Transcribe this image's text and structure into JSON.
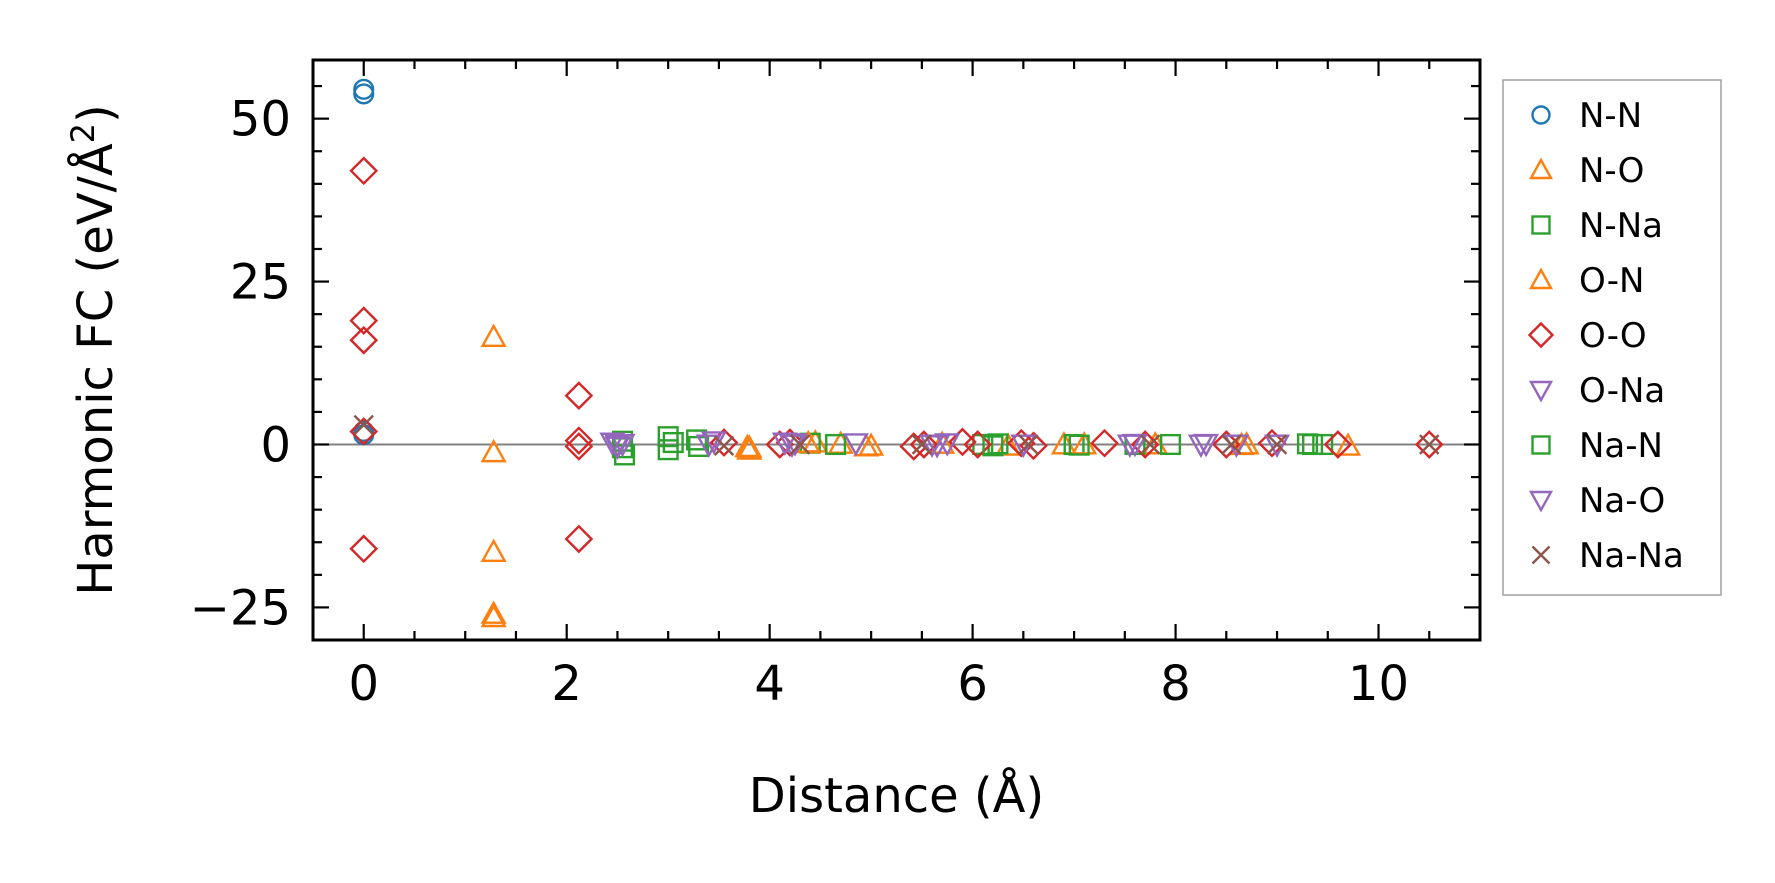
{
  "chart_data": {
    "type": "scatter",
    "xlabel": "Distance (Å)",
    "ylabel_main": "Harmonic FC (eV/Å",
    "ylabel_sup": "2",
    "ylabel_close": ")",
    "xlim": [
      -0.5,
      11.0
    ],
    "ylim": [
      -30,
      59
    ],
    "xticks": [
      0,
      2,
      4,
      6,
      8,
      10
    ],
    "xtick_labels": [
      "0",
      "2",
      "4",
      "6",
      "8",
      "10"
    ],
    "yticks": [
      -25,
      0,
      25,
      50
    ],
    "ytick_labels": [
      "−25",
      "0",
      "25",
      "50"
    ],
    "zero_line": true,
    "grid": false,
    "legend_position": "outside-right",
    "series": [
      {
        "name": "N-N",
        "marker": "circle",
        "color": "#1f77b4",
        "points": [
          [
            0,
            54.5
          ],
          [
            0,
            53.8
          ],
          [
            0,
            2.0
          ],
          [
            0,
            1.5
          ]
        ]
      },
      {
        "name": "N-O",
        "marker": "triangle-up",
        "color": "#ff7f0e",
        "points": [
          [
            1.28,
            16.5
          ],
          [
            1.28,
            -1.2
          ],
          [
            1.28,
            -16.5
          ],
          [
            1.28,
            -26.0
          ],
          [
            1.28,
            -26.5
          ],
          [
            3.78,
            -0.4
          ],
          [
            3.8,
            -0.8
          ],
          [
            4.45,
            0.3
          ],
          [
            4.7,
            0.1
          ],
          [
            4.95,
            -0.3
          ],
          [
            5.7,
            0.1
          ],
          [
            6.35,
            -0.2
          ],
          [
            6.9,
            0.0
          ],
          [
            7.8,
            0.0
          ],
          [
            8.65,
            -0.1
          ],
          [
            9.7,
            -0.2
          ]
        ]
      },
      {
        "name": "N-Na",
        "marker": "square",
        "color": "#2ca02c",
        "points": [
          [
            2.55,
            0.5
          ],
          [
            2.55,
            -0.5
          ],
          [
            2.57,
            -1.6
          ],
          [
            3.0,
            1.2
          ],
          [
            3.0,
            -0.8
          ],
          [
            3.28,
            0.7
          ],
          [
            3.3,
            -0.3
          ],
          [
            4.4,
            0.2
          ],
          [
            4.65,
            0.0
          ],
          [
            6.1,
            0.0
          ],
          [
            6.25,
            0.1
          ],
          [
            7.0,
            0.0
          ],
          [
            7.6,
            0.0
          ],
          [
            7.95,
            0.0
          ],
          [
            9.35,
            0.0
          ],
          [
            9.45,
            0.0
          ]
        ]
      },
      {
        "name": "O-N",
        "marker": "triangle-up",
        "color": "#ff7f0e",
        "points": [
          [
            3.8,
            -0.5
          ],
          [
            4.38,
            0.2
          ],
          [
            5.0,
            -0.2
          ],
          [
            7.1,
            0.0
          ],
          [
            8.7,
            0.0
          ]
        ]
      },
      {
        "name": "O-O",
        "marker": "diamond",
        "color": "#d62728",
        "points": [
          [
            0,
            42.0
          ],
          [
            0,
            19.0
          ],
          [
            0,
            16.0
          ],
          [
            0,
            2.0
          ],
          [
            0,
            -16.0
          ],
          [
            2.12,
            7.5
          ],
          [
            2.12,
            0.6
          ],
          [
            2.12,
            -0.3
          ],
          [
            2.12,
            -14.5
          ],
          [
            3.55,
            0.3
          ],
          [
            4.1,
            0.0
          ],
          [
            4.2,
            0.3
          ],
          [
            5.42,
            -0.3
          ],
          [
            5.52,
            0.0
          ],
          [
            5.9,
            0.4
          ],
          [
            6.05,
            0.0
          ],
          [
            6.48,
            0.2
          ],
          [
            6.6,
            -0.2
          ],
          [
            7.3,
            0.2
          ],
          [
            7.7,
            0.0
          ],
          [
            8.5,
            0.0
          ],
          [
            8.95,
            0.2
          ],
          [
            9.6,
            0.0
          ],
          [
            10.5,
            0.0
          ]
        ]
      },
      {
        "name": "O-Na",
        "marker": "triangle-down",
        "color": "#9467bd",
        "points": [
          [
            2.45,
            0.3
          ],
          [
            2.5,
            -0.3
          ],
          [
            2.55,
            0.1
          ],
          [
            3.4,
            0.0
          ],
          [
            3.45,
            0.5
          ],
          [
            4.15,
            0.3
          ],
          [
            4.22,
            0.0
          ],
          [
            4.85,
            0.2
          ],
          [
            5.6,
            0.0
          ],
          [
            5.75,
            0.2
          ],
          [
            6.5,
            0.0
          ],
          [
            7.55,
            0.0
          ],
          [
            8.25,
            0.0
          ],
          [
            8.6,
            0.0
          ],
          [
            9.0,
            0.0
          ]
        ]
      },
      {
        "name": "Na-N",
        "marker": "square",
        "color": "#2ca02c",
        "points": [
          [
            3.05,
            0.3
          ],
          [
            6.2,
            -0.2
          ],
          [
            7.05,
            -0.1
          ],
          [
            9.3,
            0.1
          ]
        ]
      },
      {
        "name": "Na-O",
        "marker": "triangle-down",
        "color": "#9467bd",
        "points": [
          [
            2.5,
            0.0
          ],
          [
            4.25,
            0.2
          ],
          [
            5.65,
            -0.1
          ],
          [
            7.6,
            0.1
          ],
          [
            8.3,
            0.1
          ]
        ]
      },
      {
        "name": "Na-Na",
        "marker": "x",
        "color": "#8c564b",
        "points": [
          [
            0,
            3.0
          ],
          [
            3.55,
            -0.2
          ],
          [
            4.3,
            0.0
          ],
          [
            5.5,
            0.0
          ],
          [
            6.55,
            0.0
          ],
          [
            7.75,
            0.0
          ],
          [
            8.55,
            0.0
          ],
          [
            9.0,
            0.0
          ],
          [
            10.5,
            0.0
          ]
        ]
      }
    ]
  }
}
